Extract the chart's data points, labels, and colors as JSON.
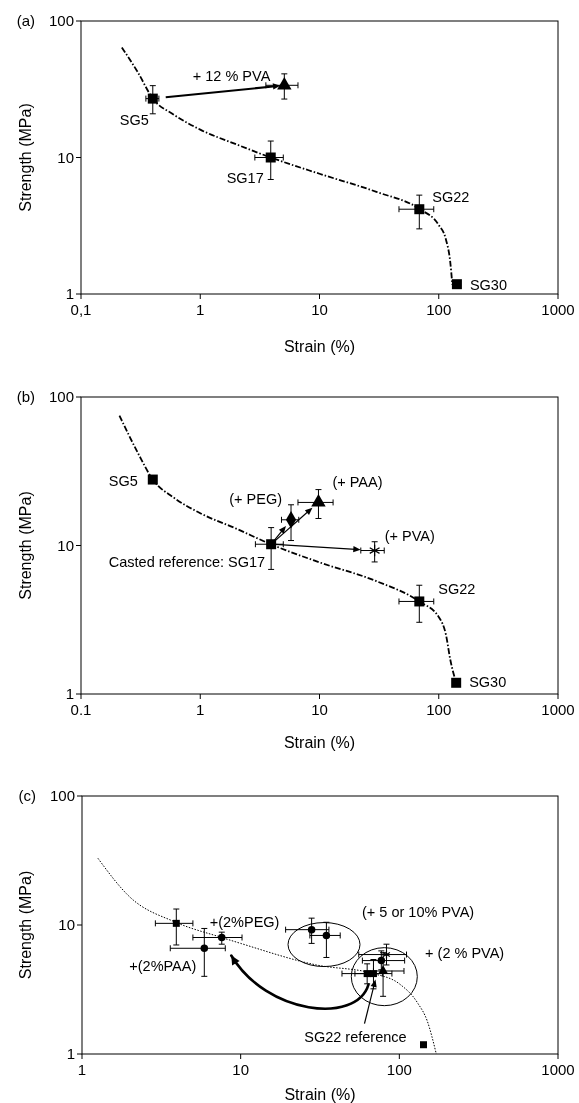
{
  "chart_data": [
    {
      "type": "scatter",
      "title": "(a)",
      "xlabel": "Strain (%)",
      "ylabel": "Strength (MPa)",
      "log": "xy",
      "xlim": [
        0.1,
        1000
      ],
      "ylim": [
        1,
        100
      ],
      "xticks": [
        {
          "value": 0.1,
          "label": "0,1"
        },
        1,
        10,
        100,
        1000
      ],
      "yticks": [
        1,
        10,
        100
      ],
      "series": [
        {
          "type": "line",
          "color": "#000000",
          "line_style": "dashed",
          "x": [
            0.22,
            0.3,
            0.4,
            0.6,
            1,
            2,
            3.9,
            10,
            30,
            68.7,
            100,
            115,
            125,
            130
          ],
          "values": [
            64,
            42,
            27,
            20.6,
            16,
            12.5,
            10,
            7.6,
            5.6,
            4.2,
            3.2,
            2.5,
            1.7,
            1.17
          ]
        },
        {
          "name": "SG5",
          "color": "#000000",
          "marker": "square",
          "x": [
            0.4
          ],
          "values": [
            27
          ],
          "errors": [
            [
              20.9,
              33.6
            ]
          ],
          "xerrors": [
            [
              0.35,
              0.45
            ]
          ]
        },
        {
          "name": "+ 12 % PVA",
          "color": "#000000",
          "marker": "triangle",
          "x": [
            5.07
          ],
          "values": [
            33.8
          ],
          "errors": [
            [
              26.8,
              41
            ]
          ],
          "xerrors": [
            [
              3.55,
              6.6
            ]
          ]
        },
        {
          "name": "SG17",
          "color": "#000000",
          "marker": "square",
          "x": [
            3.9
          ],
          "values": [
            10
          ],
          "errors": [
            [
              6.9,
              13.2
            ]
          ],
          "xerrors": [
            [
              2.87,
              4.97
            ]
          ]
        },
        {
          "name": "SG22",
          "color": "#000000",
          "marker": "square",
          "x": [
            68.7
          ],
          "values": [
            4.18
          ],
          "errors": [
            [
              3.0,
              5.3
            ]
          ],
          "xerrors": [
            [
              46.4,
              90.8
            ]
          ]
        },
        {
          "name": "SG30",
          "color": "#000000",
          "marker": "square",
          "x": [
            142
          ],
          "values": [
            1.18
          ]
        }
      ]
    },
    {
      "type": "scatter",
      "title": "(b)",
      "xlabel": "Strain (%)",
      "ylabel": "Strength (MPa)",
      "log": "xy",
      "xlim": [
        0.1,
        1000
      ],
      "ylim": [
        1,
        100
      ],
      "xticks": [
        0.1,
        1,
        10,
        100,
        1000
      ],
      "yticks": [
        1,
        10,
        100
      ],
      "series": [
        {
          "type": "line",
          "color": "#000000",
          "line_style": "dashed",
          "x": [
            0.21,
            0.3,
            0.4,
            0.6,
            1,
            2,
            3.9,
            10,
            30,
            68.7,
            100,
            115,
            125,
            140
          ],
          "values": [
            75,
            42,
            27.8,
            21,
            16.5,
            13,
            10.2,
            7.7,
            5.75,
            4.2,
            3.3,
            2.5,
            1.7,
            1.19
          ]
        },
        {
          "name": "SG5",
          "color": "#000000",
          "marker": "square",
          "x": [
            0.4
          ],
          "values": [
            27.8
          ]
        },
        {
          "name": "Casted reference: SG17",
          "color": "#000000",
          "marker": "square",
          "x": [
            3.93
          ],
          "values": [
            10.2
          ],
          "errors": [
            [
              6.9,
              13.2
            ]
          ],
          "xerrors": [
            [
              2.9,
              4.97
            ]
          ]
        },
        {
          "name": "(+ PEG)",
          "color": "#000000",
          "marker": "diamond",
          "x": [
            5.77
          ],
          "values": [
            14.9
          ],
          "errors": [
            [
              10.8,
              18.8
            ]
          ],
          "xerrors": [
            [
              4.8,
              6.7
            ]
          ]
        },
        {
          "name": "(+ PAA)",
          "color": "#000000",
          "marker": "triangle",
          "x": [
            9.8
          ],
          "values": [
            19.5
          ],
          "errors": [
            [
              15.2,
              23.8
            ]
          ],
          "xerrors": [
            [
              6.6,
              13
            ]
          ]
        },
        {
          "name": "(+ PVA)",
          "color": "#000000",
          "marker": "cross",
          "x": [
            29
          ],
          "values": [
            9.25
          ],
          "errors": [
            [
              7.75,
              10.6
            ]
          ],
          "xerrors": [
            [
              22.2,
              34.9
            ]
          ]
        },
        {
          "name": "SG22",
          "color": "#000000",
          "marker": "square",
          "x": [
            68.7
          ],
          "values": [
            4.2
          ],
          "errors": [
            [
              3.04,
              5.4
            ]
          ],
          "xerrors": [
            [
              46.4,
              90.8
            ]
          ]
        },
        {
          "name": "SG30",
          "color": "#000000",
          "marker": "square",
          "x": [
            140
          ],
          "values": [
            1.19
          ]
        }
      ]
    },
    {
      "type": "scatter",
      "title": "(c)",
      "annotations": [
        "(+ 5 or 10% PVA)"
      ],
      "xlabel": "Strain (%)",
      "ylabel": "Strength (MPa)",
      "log": "xy",
      "xlim": [
        1,
        1000
      ],
      "ylim": [
        1,
        100
      ],
      "xticks": [
        1,
        10,
        100,
        1000
      ],
      "yticks": [
        1,
        10,
        100
      ],
      "series": [
        {
          "type": "line",
          "color": "#000000",
          "line_style": "dotted",
          "x": [
            1.26,
            2,
            3.9,
            7.6,
            10,
            30,
            68.7,
            100,
            130,
            150,
            171
          ],
          "values": [
            32.9,
            16.5,
            10.5,
            8,
            7.2,
            4.9,
            4.2,
            3.5,
            2.5,
            1.8,
            1.0
          ]
        },
        {
          "color": "#000000",
          "marker": "square",
          "x": [
            3.93
          ],
          "values": [
            10.3
          ],
          "errors": [
            [
              7.0,
              13.3
            ]
          ],
          "xerrors": [
            [
              2.9,
              5.0
            ]
          ]
        },
        {
          "name": "+(2%PEG)",
          "color": "#000000",
          "marker": "circle",
          "x": [
            7.6
          ],
          "values": [
            8.0
          ],
          "errors": [
            [
              7.1,
              8.8
            ]
          ],
          "xerrors": [
            [
              5.0,
              10.2
            ]
          ]
        },
        {
          "name": "+(2%PAA)",
          "color": "#000000",
          "marker": "circle",
          "x": [
            5.9
          ],
          "values": [
            6.6
          ],
          "errors": [
            [
              4.0,
              9.4
            ]
          ],
          "xerrors": [
            [
              3.6,
              8.0
            ]
          ]
        },
        {
          "color": "#000000",
          "marker": "circle",
          "x": [
            28
          ],
          "values": [
            9.2
          ],
          "errors": [
            [
              7.2,
              11.3
            ]
          ],
          "xerrors": [
            [
              19.2,
              36
            ]
          ]
        },
        {
          "color": "#000000",
          "marker": "circle",
          "x": [
            34.7
          ],
          "values": [
            8.3
          ],
          "errors": [
            [
              5.6,
              10.5
            ]
          ],
          "xerrors": [
            [
              27.3,
              42.4
            ]
          ]
        },
        {
          "name": "SG22 reference",
          "color": "#000000",
          "marker": "square",
          "x": [
            68.7
          ],
          "values": [
            4.2
          ],
          "errors": [
            [
              3.2,
              5.4
            ]
          ],
          "xerrors": [
            [
              52.5,
              89.8
            ]
          ]
        },
        {
          "color": "#000000",
          "marker": "square",
          "x": [
            62.7
          ],
          "values": [
            4.2
          ],
          "errors": [
            [
              3.5,
              5.0
            ]
          ],
          "xerrors": [
            [
              43.5,
              78.5
            ]
          ]
        },
        {
          "color": "#000000",
          "marker": "circle",
          "x": [
            77
          ],
          "values": [
            5.3
          ],
          "errors": [
            [
              4.5,
              6.3
            ]
          ],
          "xerrors": [
            [
              58.5,
              108
            ]
          ]
        },
        {
          "color": "#000000",
          "marker": "cross",
          "x": [
            83
          ],
          "values": [
            5.9
          ],
          "errors": [
            [
              4.9,
              7.1
            ]
          ],
          "xerrors": [
            [
              55.5,
              111
            ]
          ]
        },
        {
          "name": "+ (2 % PVA)",
          "color": "#000000",
          "marker": "triangle",
          "x": [
            79
          ],
          "values": [
            4.4
          ],
          "errors": [
            [
              2.8,
              6.1
            ]
          ],
          "xerrors": [
            [
              68.7,
              107
            ]
          ]
        },
        {
          "color": "#000000",
          "marker": "square",
          "x": [
            142
          ],
          "values": [
            1.18
          ]
        }
      ]
    }
  ]
}
